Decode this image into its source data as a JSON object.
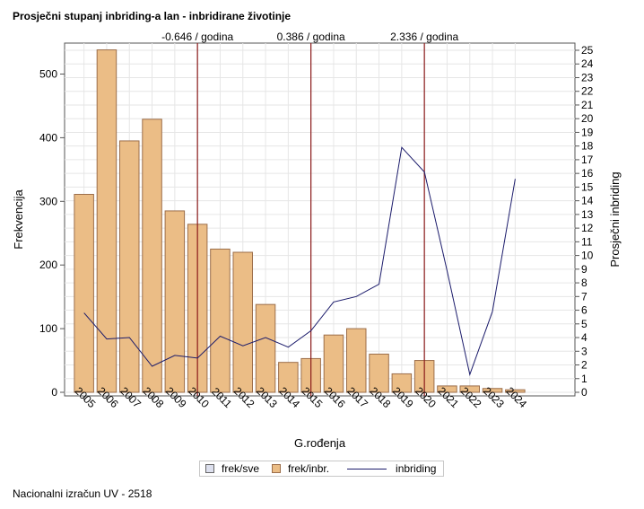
{
  "title": "Prosječni stupanj inbriding-a lan - inbridirane životinje",
  "footer": "Nacionalni izračun UV - 2518",
  "colors": {
    "bar_fill": "#ebbd86",
    "bar_stroke": "#9c6e4a",
    "line": "#1b1b6b",
    "vline": "#8b1a1a",
    "grid": "#e6e6e6",
    "sve_fill": "#dde0ee"
  },
  "legend": {
    "items": [
      {
        "label": "frek/sve",
        "kind": "swatch",
        "color": "#dde0ee"
      },
      {
        "label": "frek/inbr.",
        "kind": "swatch",
        "color": "#ebbd86"
      },
      {
        "label": "inbriding",
        "kind": "line",
        "color": "#1b1b6b"
      }
    ]
  },
  "chart_data": {
    "type": "bar",
    "xlabel": "G.rođenja",
    "ylabel": "Frekvencija",
    "y2label": "Prosječni inbriding",
    "categories": [
      "2005",
      "2006",
      "2007",
      "2008",
      "2009",
      "2010",
      "2011",
      "2012",
      "2013",
      "2014",
      "2015",
      "2016",
      "2017",
      "2018",
      "2019",
      "2020",
      "2021",
      "2022",
      "2023",
      "2024"
    ],
    "series": [
      {
        "name": "frek/inbr.",
        "type": "bar",
        "axis": "left",
        "values": [
          311,
          538,
          395,
          429,
          285,
          264,
          225,
          220,
          138,
          47,
          53,
          90,
          100,
          60,
          29,
          50,
          10,
          10,
          6,
          4
        ]
      },
      {
        "name": "inbriding",
        "type": "line",
        "axis": "right",
        "values": [
          5.8,
          3.9,
          4.0,
          1.9,
          2.7,
          2.5,
          4.1,
          3.4,
          4.0,
          3.3,
          4.5,
          6.6,
          7.0,
          7.9,
          17.9,
          16.1,
          8.9,
          1.3,
          5.9,
          15.6
        ]
      }
    ],
    "ylim": [
      0,
      540
    ],
    "yticks": [
      0,
      100,
      200,
      300,
      400,
      500
    ],
    "y2lim": [
      0,
      25
    ],
    "y2ticks": [
      0,
      1,
      2,
      3,
      4,
      5,
      6,
      7,
      8,
      9,
      10,
      11,
      12,
      13,
      14,
      15,
      16,
      17,
      18,
      19,
      20,
      21,
      22,
      23,
      24,
      25
    ],
    "reference_lines": [
      {
        "category": "2010",
        "label": "-0.646 / godina"
      },
      {
        "category": "2015",
        "label": "0.386 / godina"
      },
      {
        "category": "2020",
        "label": "2.336 / godina"
      }
    ],
    "grid": true,
    "legend_position": "bottom"
  }
}
